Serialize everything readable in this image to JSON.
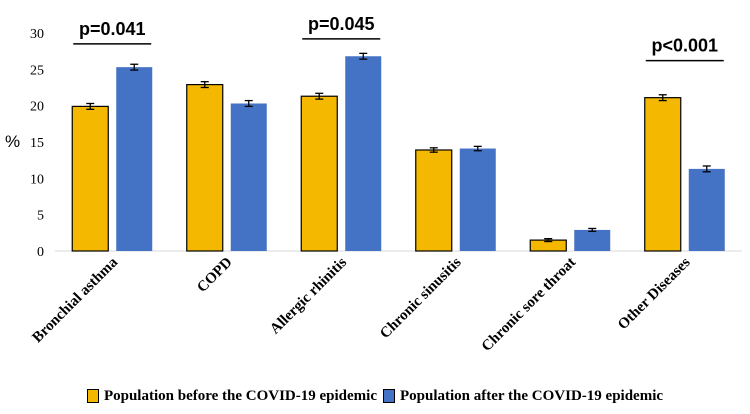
{
  "chart_data": {
    "type": "bar",
    "title": "",
    "xlabel": "",
    "ylabel": "%",
    "ylim": [
      0,
      30
    ],
    "yticks": [
      0,
      5,
      10,
      15,
      20,
      25,
      30
    ],
    "grid": false,
    "categories": [
      "Bronchial asthma",
      "COPD",
      "Allergic rhinitis",
      "Chronic sinusitis",
      "Chronic sore throat",
      "Other Diseases"
    ],
    "series": [
      {
        "name": "Population before the COVID-19 epidemic",
        "color": "#F4B800",
        "values": [
          19.9,
          22.9,
          21.3,
          13.9,
          1.5,
          21.1
        ],
        "error": [
          0.4,
          0.4,
          0.4,
          0.3,
          0.2,
          0.4
        ]
      },
      {
        "name": "Population after the COVID-19 epidemic",
        "color": "#4472C4",
        "values": [
          25.3,
          20.3,
          26.8,
          14.1,
          2.9,
          11.3
        ],
        "error": [
          0.4,
          0.4,
          0.4,
          0.3,
          0.2,
          0.4
        ]
      }
    ],
    "annotations": [
      {
        "text": "p=0.041",
        "category_index": 0,
        "bar_y": 28.5
      },
      {
        "text": "p=0.045",
        "category_index": 2,
        "bar_y": 29.2
      },
      {
        "text": "p<0.001",
        "category_index": 5,
        "bar_y": 26.2
      }
    ],
    "legend_position": "bottom"
  }
}
